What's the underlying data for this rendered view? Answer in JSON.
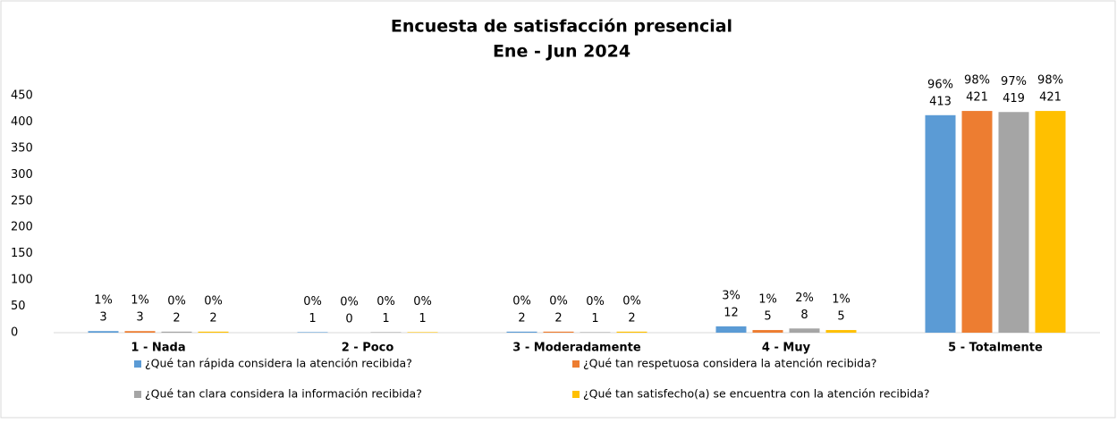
{
  "chart_data": {
    "type": "bar",
    "title": [
      "Encuesta de satisfacción presencial",
      "Ene - Jun 2024"
    ],
    "categories": [
      "1 - Nada",
      "2 - Poco",
      "3 - Moderadamente",
      "4 - Muy",
      "5 - Totalmente"
    ],
    "series": [
      {
        "name": "¿Qué tan rápida considera la atención recibida?",
        "color": "#5b9bd5",
        "values": [
          3,
          1,
          2,
          12,
          413
        ],
        "percent_labels": [
          "1%",
          "0%",
          "0%",
          "3%",
          "96%"
        ]
      },
      {
        "name": "¿Qué tan respetuosa considera la atención recibida?",
        "color": "#ed7d31",
        "values": [
          3,
          0,
          2,
          5,
          421
        ],
        "percent_labels": [
          "1%",
          "0%",
          "0%",
          "1%",
          "98%"
        ]
      },
      {
        "name": "¿Qué tan clara considera la información recibida?",
        "color": "#a5a5a5",
        "values": [
          2,
          1,
          1,
          8,
          419
        ],
        "percent_labels": [
          "0%",
          "0%",
          "0%",
          "2%",
          "97%"
        ]
      },
      {
        "name": "¿Qué tan satisfecho(a) se encuentra con la atención recibida?",
        "color": "#ffc000",
        "values": [
          2,
          1,
          2,
          5,
          421
        ],
        "percent_labels": [
          "0%",
          "0%",
          "0%",
          "1%",
          "98%"
        ]
      }
    ],
    "ylim": [
      0,
      450
    ],
    "yticks": [
      0,
      50,
      100,
      150,
      200,
      250,
      300,
      350,
      400,
      450
    ],
    "grid": false,
    "legend": "bottom"
  }
}
